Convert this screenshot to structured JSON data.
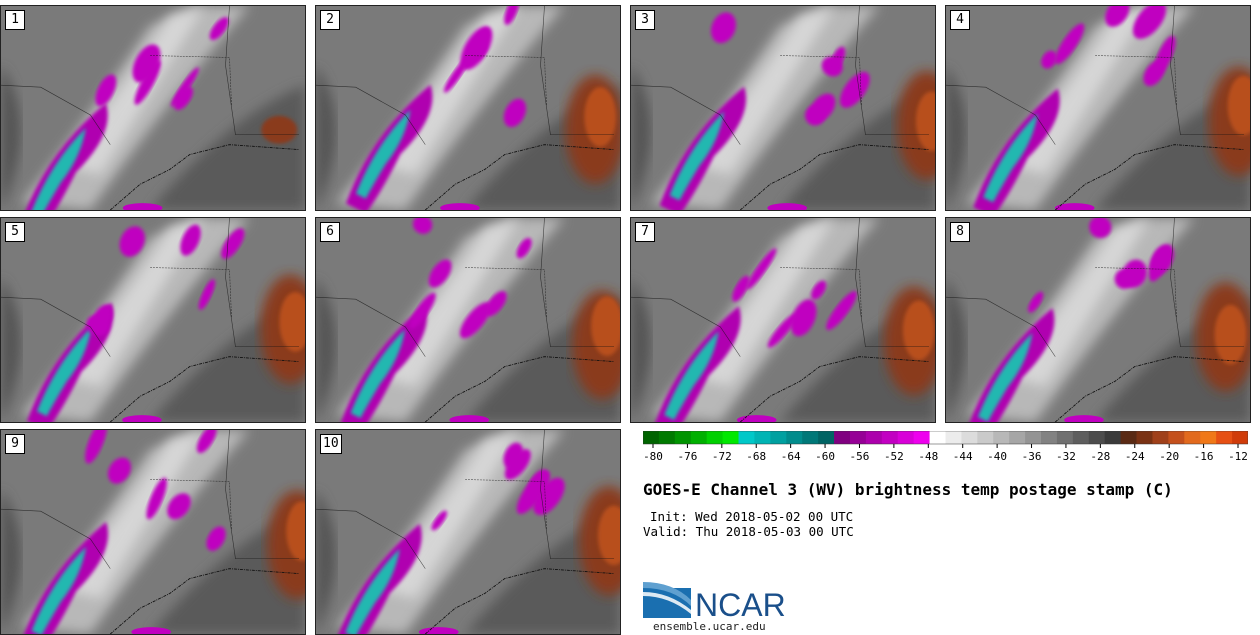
{
  "panels": [
    {
      "label": "1"
    },
    {
      "label": "2"
    },
    {
      "label": "3"
    },
    {
      "label": "4"
    },
    {
      "label": "5"
    },
    {
      "label": "6"
    },
    {
      "label": "7"
    },
    {
      "label": "8"
    },
    {
      "label": "9"
    },
    {
      "label": "10"
    }
  ],
  "colorbar": {
    "ticks": [
      "-80",
      "-76",
      "-72",
      "-68",
      "-64",
      "-60",
      "-56",
      "-52",
      "-48",
      "-44",
      "-40",
      "-36",
      "-32",
      "-28",
      "-24",
      "-20",
      "-16",
      "-12"
    ],
    "colors": [
      "#006400",
      "#007a00",
      "#009400",
      "#00b000",
      "#00d000",
      "#00e800",
      "#00c8c8",
      "#00b4b4",
      "#00a0a0",
      "#008c8c",
      "#007878",
      "#006464",
      "#800080",
      "#960096",
      "#ac00ac",
      "#c200c2",
      "#d800d8",
      "#ee00ee",
      "#ffffff",
      "#ececec",
      "#dcdcdc",
      "#cacaca",
      "#b8b8b8",
      "#a6a6a6",
      "#949494",
      "#828282",
      "#707070",
      "#5e5e5e",
      "#4c4c4c",
      "#3a3a3a",
      "#5a2a14",
      "#7a3214",
      "#a0401a",
      "#c4501c",
      "#e26a1e",
      "#f07818",
      "#e65014",
      "#d03c0a"
    ]
  },
  "title": "GOES-E Channel 3 (WV) brightness temp postage stamp (C)",
  "init_text": "Init: Wed 2018-05-02 00 UTC",
  "valid_text": "Valid: Thu 2018-05-03 00 UTC",
  "logo_text": "NCAR",
  "url": "ensemble.ucar.edu"
}
